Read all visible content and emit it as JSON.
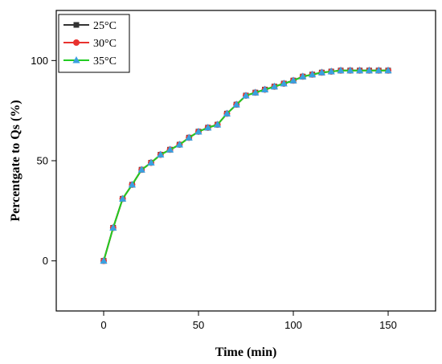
{
  "chart_data": {
    "type": "line",
    "xlabel": "Time (min)",
    "ylabel": "Percentgate to Qs (%)",
    "xlim": [
      -25,
      175
    ],
    "ylim": [
      -25,
      125
    ],
    "xticks": [
      0,
      50,
      100,
      150
    ],
    "yticks": [
      0,
      50,
      100
    ],
    "grid": false,
    "legend_position": "top-left",
    "x": [
      0,
      5,
      10,
      15,
      20,
      25,
      30,
      35,
      40,
      45,
      50,
      55,
      60,
      65,
      70,
      75,
      80,
      85,
      90,
      95,
      100,
      105,
      110,
      115,
      120,
      125,
      130,
      135,
      140,
      145,
      150
    ],
    "series": [
      {
        "name": "25°C",
        "color": "#333333",
        "marker": "square",
        "values": [
          0,
          16.5,
          31,
          38,
          45.5,
          49,
          53,
          55.5,
          58,
          61.5,
          64.5,
          66.5,
          68,
          73.5,
          78,
          82.5,
          84,
          85.5,
          87,
          88.5,
          90,
          92,
          93,
          94,
          94.5,
          95,
          95,
          95,
          95,
          95,
          95
        ]
      },
      {
        "name": "30°C",
        "color": "#e8322e",
        "marker": "circle",
        "values": [
          0,
          16.5,
          31,
          38,
          45.5,
          49,
          53,
          55.5,
          58,
          61.5,
          64.5,
          66.5,
          68,
          73.5,
          78,
          82.5,
          84,
          85.5,
          87,
          88.5,
          90,
          92,
          93,
          94,
          94.5,
          95,
          95,
          95,
          95,
          95,
          95
        ]
      },
      {
        "name": "35°C",
        "color": "#3aa0e0",
        "line_color": "#22cc22",
        "marker": "triangle",
        "values": [
          0,
          16.5,
          31,
          38,
          45.5,
          49,
          53,
          55.5,
          58,
          61.5,
          64.5,
          66.5,
          68,
          73.5,
          78,
          82.5,
          84,
          85.5,
          87,
          88.5,
          90,
          92,
          93,
          94,
          94.5,
          95,
          95,
          95,
          95,
          95,
          95
        ]
      }
    ]
  }
}
